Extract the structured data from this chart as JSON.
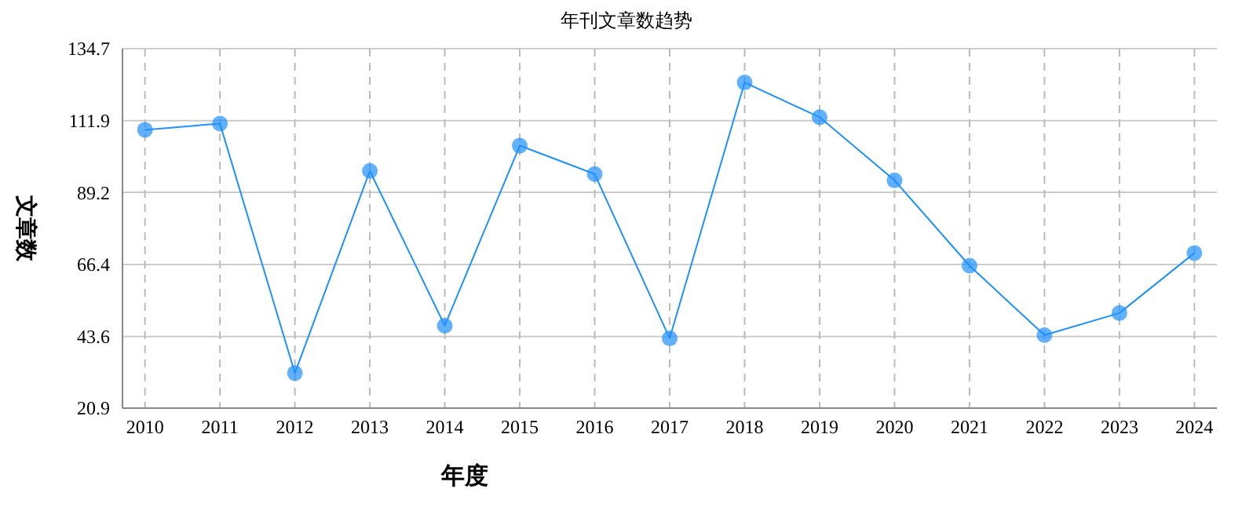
{
  "chart_data": {
    "type": "line",
    "title": "年刊文章数趋势",
    "xlabel": "年度",
    "ylabel": "文章数",
    "categories": [
      "2010",
      "2011",
      "2012",
      "2013",
      "2014",
      "2015",
      "2016",
      "2017",
      "2018",
      "2019",
      "2020",
      "2021",
      "2022",
      "2023",
      "2024"
    ],
    "series": [
      {
        "color": "#1e90ff",
        "values": [
          109,
          111,
          32,
          96,
          47,
          104,
          95,
          43,
          124,
          113,
          93,
          66,
          44,
          51,
          70
        ]
      }
    ],
    "ylim": [
      20.9,
      134.7
    ],
    "yticks": [
      20.9,
      43.6,
      66.4,
      89.2,
      111.9,
      134.7
    ],
    "grid": true,
    "marker": "circle",
    "line_style": "solid"
  }
}
